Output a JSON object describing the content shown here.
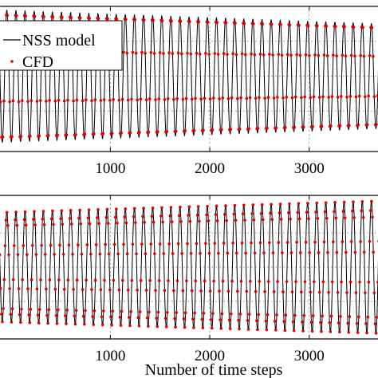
{
  "chart_data": [
    {
      "type": "line",
      "panel": "top",
      "xlabel": "",
      "ylabel": "",
      "xlim": [
        -150,
        3700
      ],
      "ylim": [
        -1.08,
        1.0
      ],
      "xticks": [
        1000,
        2000,
        3000
      ],
      "xtick_labels": [
        "1000",
        "2000",
        "3000"
      ],
      "grid": true,
      "legend_position": "top-left",
      "series": [
        {
          "name": "NSS model",
          "style": "line",
          "color": "#000000",
          "waveform": {
            "cycles": 42,
            "amplitude_start": 0.95,
            "amplitude_end": 0.75,
            "mean": 0.0
          }
        },
        {
          "name": "CFD",
          "style": "dots",
          "color": "#e00000",
          "waveform": {
            "cycles": 42,
            "amplitude_start": 0.95,
            "amplitude_end": 0.75,
            "mean": 0.0,
            "samples_per_cycle": 8
          }
        }
      ]
    },
    {
      "type": "line",
      "panel": "bottom",
      "xlabel": "Number of time steps",
      "ylabel": "",
      "xlim": [
        -150,
        3700
      ],
      "ylim": [
        -1.05,
        1.05
      ],
      "xticks": [
        1000,
        2000,
        3000
      ],
      "xtick_labels": [
        "1000",
        "2000",
        "3000"
      ],
      "grid": true,
      "series": [
        {
          "name": "NSS model",
          "style": "line",
          "color": "#000000",
          "waveform": {
            "cycles": 42,
            "amplitude_start": 0.8,
            "amplitude_end": 0.97,
            "mean": 0.0
          }
        },
        {
          "name": "CFD",
          "style": "dots",
          "color": "#e00000",
          "waveform": {
            "cycles": 42,
            "amplitude_start": 0.8,
            "amplitude_end": 0.97,
            "mean": 0.0,
            "samples_per_cycle": 10
          }
        }
      ]
    }
  ],
  "legend": {
    "entries": [
      "NSS model",
      "CFD"
    ]
  }
}
